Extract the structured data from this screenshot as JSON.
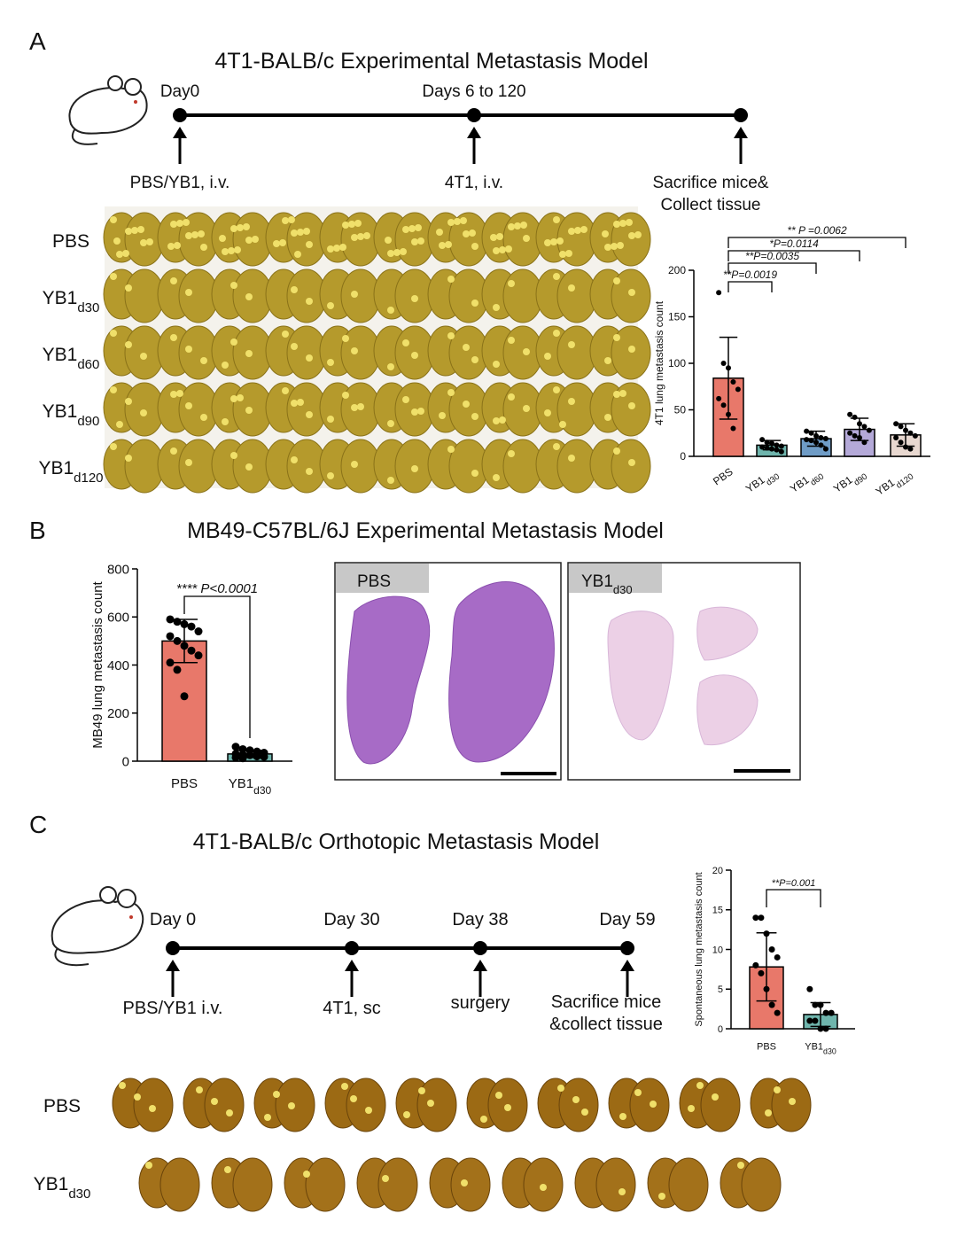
{
  "panels": {
    "a": {
      "letter": "A",
      "title": "4T1-BALB/c Experimental Metastasis Model",
      "timeline": {
        "top_labels": [
          "Day0",
          "Days 6 to 120"
        ],
        "bottom_labels": [
          "PBS/YB1, i.v.",
          "4T1, i.v."
        ],
        "end_label": [
          "Sacrifice mice&",
          "Collect tissue"
        ]
      },
      "photo_rows": [
        {
          "label": "PBS"
        },
        {
          "label": "YB1",
          "sub": "d30"
        },
        {
          "label": "YB1",
          "sub": "d60"
        },
        {
          "label": "YB1",
          "sub": "d90"
        },
        {
          "label": "YB1",
          "sub": "d120"
        }
      ]
    },
    "b": {
      "letter": "B",
      "title": "MB49-C57BL/6J Experimental Metastasis Model",
      "images": [
        {
          "label": "PBS"
        },
        {
          "label": "YB1",
          "sub": "d30"
        }
      ]
    },
    "c": {
      "letter": "C",
      "title": "4T1-BALB/c Orthotopic Metastasis Model",
      "timeline": {
        "top_labels": [
          "Day 0",
          "Day 30",
          "Day 38",
          "Day 59"
        ],
        "bottom_labels": [
          "PBS/YB1 i.v.",
          "4T1, sc",
          "surgery"
        ],
        "end_label": [
          "Sacrifice mice",
          "&collect tissue"
        ]
      },
      "photo_rows": [
        {
          "label": "PBS"
        },
        {
          "label": "YB1",
          "sub": "d30"
        }
      ]
    }
  },
  "chart_data": [
    {
      "type": "bar",
      "ylabel": "4T1 lung metastasis count",
      "categories": [
        {
          "label": "PBS"
        },
        {
          "label": "YB1",
          "sub": "d30"
        },
        {
          "label": "YB1",
          "sub": "d60"
        },
        {
          "label": "YB1",
          "sub": "d90"
        },
        {
          "label": "YB1",
          "sub": "d120"
        }
      ],
      "values": [
        84,
        12,
        19,
        29,
        23
      ],
      "errors": [
        44,
        5,
        8,
        12,
        12
      ],
      "points": [
        [
          176,
          100,
          95,
          80,
          72,
          62,
          55,
          45,
          30
        ],
        [
          18,
          15,
          14,
          12,
          11,
          10,
          9,
          8,
          7,
          5
        ],
        [
          27,
          25,
          22,
          20,
          19,
          18,
          17,
          15,
          12,
          8
        ],
        [
          45,
          42,
          35,
          32,
          28,
          25,
          22,
          20,
          15
        ],
        [
          35,
          32,
          28,
          25,
          22,
          20,
          15,
          10,
          8
        ]
      ],
      "colors": [
        "#e8786a",
        "#6fb5ad",
        "#6f9cc6",
        "#b4a9d8",
        "#e8d8d0"
      ],
      "ylim": [
        0,
        200
      ],
      "yticks": [
        0,
        50,
        100,
        150,
        200
      ],
      "annotations": [
        "**P=0.0019",
        "**P=0.0035",
        "*P=0.0114",
        "** P =0.0062"
      ]
    },
    {
      "type": "bar",
      "ylabel": "MB49 lung metastasis count",
      "categories": [
        {
          "label": "PBS"
        },
        {
          "label": "YB1",
          "sub": "d30"
        }
      ],
      "values": [
        500,
        30
      ],
      "errors": [
        90,
        15
      ],
      "points": [
        [
          590,
          580,
          570,
          560,
          540,
          520,
          500,
          480,
          460,
          440,
          410,
          380,
          270
        ],
        [
          60,
          50,
          45,
          40,
          35,
          30,
          28,
          25,
          20,
          18,
          15,
          12
        ]
      ],
      "colors": [
        "#e8786a",
        "#6fb5ad"
      ],
      "ylim": [
        0,
        800
      ],
      "yticks": [
        0,
        200,
        400,
        600,
        800
      ],
      "annotations": [
        "**** P<0.0001"
      ]
    },
    {
      "type": "bar",
      "ylabel": "Spontaneous lung metastasis count",
      "categories": [
        {
          "label": "PBS"
        },
        {
          "label": "YB1",
          "sub": "d30"
        }
      ],
      "values": [
        7.8,
        1.8
      ],
      "errors": [
        4.3,
        1.5
      ],
      "points": [
        [
          14,
          14,
          12,
          10,
          9,
          8,
          7,
          5,
          3,
          2
        ],
        [
          5,
          3,
          3,
          2,
          2,
          1,
          1,
          0,
          0
        ]
      ],
      "colors": [
        "#e8786a",
        "#6fb5ad"
      ],
      "ylim": [
        0,
        20
      ],
      "yticks": [
        0,
        5,
        10,
        15,
        20
      ],
      "annotations": [
        "**P=0.001"
      ]
    }
  ]
}
